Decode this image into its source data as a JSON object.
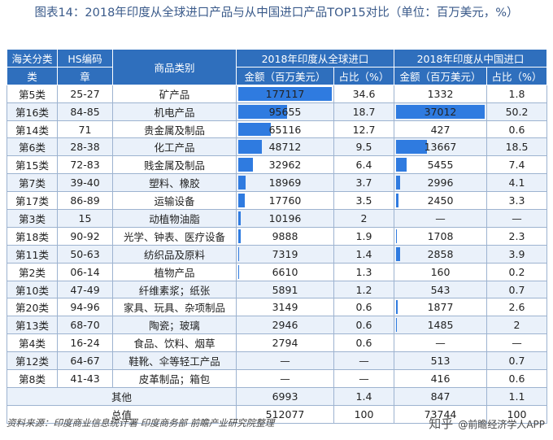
{
  "title": "图表14：2018年印度从全球进口产品与从中国进口产品TOP15对比（单位：百万美元，%）",
  "header": {
    "col1": "海关分类",
    "col1b": "类",
    "col2": "HS编码",
    "col2b": "章",
    "col3": "商品类别",
    "global": "2018年印度从全球进口",
    "china": "2018年印度从中国进口",
    "amount": "金额（百万美元）",
    "share": "占比（%）"
  },
  "rows": [
    {
      "cls": "第5类",
      "hs": "25-27",
      "name": "矿产品",
      "g_amt": "177117",
      "g_pct": "34.6",
      "c_amt": "1332",
      "c_pct": "1.8",
      "g_bar": 177117,
      "c_bar": 1332
    },
    {
      "cls": "第16类",
      "hs": "84-85",
      "name": "机电产品",
      "g_amt": "95655",
      "g_pct": "18.7",
      "c_amt": "37012",
      "c_pct": "50.2",
      "g_bar": 95655,
      "c_bar": 37012
    },
    {
      "cls": "第14类",
      "hs": "71",
      "name": "贵金属及制品",
      "g_amt": "65116",
      "g_pct": "12.7",
      "c_amt": "427",
      "c_pct": "0.6",
      "g_bar": 65116,
      "c_bar": 427
    },
    {
      "cls": "第6类",
      "hs": "28-38",
      "name": "化工产品",
      "g_amt": "48712",
      "g_pct": "9.5",
      "c_amt": "13667",
      "c_pct": "18.5",
      "g_bar": 48712,
      "c_bar": 13667
    },
    {
      "cls": "第15类",
      "hs": "72-83",
      "name": "贱金属及制品",
      "g_amt": "32962",
      "g_pct": "6.4",
      "c_amt": "5455",
      "c_pct": "7.4",
      "g_bar": 32962,
      "c_bar": 5455
    },
    {
      "cls": "第7类",
      "hs": "39-40",
      "name": "塑料、橡胶",
      "g_amt": "18969",
      "g_pct": "3.7",
      "c_amt": "2996",
      "c_pct": "4.1",
      "g_bar": 18969,
      "c_bar": 2996
    },
    {
      "cls": "第17类",
      "hs": "86-89",
      "name": "运输设备",
      "g_amt": "17760",
      "g_pct": "3.5",
      "c_amt": "2450",
      "c_pct": "3.3",
      "g_bar": 17760,
      "c_bar": 2450
    },
    {
      "cls": "第3类",
      "hs": "15",
      "name": "动植物油脂",
      "g_amt": "10196",
      "g_pct": "2",
      "c_amt": "—",
      "c_pct": "—",
      "g_bar": 10196,
      "c_bar": 0
    },
    {
      "cls": "第18类",
      "hs": "90-92",
      "name": "光学、钟表、医疗设备",
      "g_amt": "9888",
      "g_pct": "1.9",
      "c_amt": "1708",
      "c_pct": "2.3",
      "g_bar": 9888,
      "c_bar": 1708
    },
    {
      "cls": "第11类",
      "hs": "50-63",
      "name": "纺织品及原料",
      "g_amt": "7319",
      "g_pct": "1.4",
      "c_amt": "2858",
      "c_pct": "3.9",
      "g_bar": 7319,
      "c_bar": 2858
    },
    {
      "cls": "第2类",
      "hs": "06-14",
      "name": "植物产品",
      "g_amt": "6610",
      "g_pct": "1.3",
      "c_amt": "160",
      "c_pct": "0.2",
      "g_bar": 6610,
      "c_bar": 160
    },
    {
      "cls": "第10类",
      "hs": "47-49",
      "name": "纤维素浆；纸张",
      "g_amt": "5891",
      "g_pct": "1.2",
      "c_amt": "543",
      "c_pct": "0.7",
      "g_bar": 5891,
      "c_bar": 543
    },
    {
      "cls": "第20类",
      "hs": "94-96",
      "name": "家具、玩具、杂项制品",
      "g_amt": "3149",
      "g_pct": "0.6",
      "c_amt": "1877",
      "c_pct": "2.6",
      "g_bar": 3149,
      "c_bar": 1877
    },
    {
      "cls": "第13类",
      "hs": "68-70",
      "name": "陶瓷；玻璃",
      "g_amt": "2946",
      "g_pct": "0.6",
      "c_amt": "1485",
      "c_pct": "2",
      "g_bar": 2946,
      "c_bar": 1485
    },
    {
      "cls": "第4类",
      "hs": "16-24",
      "name": "食品、饮料、烟草",
      "g_amt": "2794",
      "g_pct": "0.6",
      "c_amt": "—",
      "c_pct": "—",
      "g_bar": 2794,
      "c_bar": 0
    },
    {
      "cls": "第12类",
      "hs": "64-67",
      "name": "鞋靴、伞等轻工产品",
      "g_amt": "—",
      "g_pct": "—",
      "c_amt": "513",
      "c_pct": "0.7",
      "g_bar": 0,
      "c_bar": 513
    },
    {
      "cls": "第8类",
      "hs": "41-43",
      "name": "皮革制品；箱包",
      "g_amt": "—",
      "g_pct": "—",
      "c_amt": "416",
      "c_pct": "0.6",
      "g_bar": 0,
      "c_bar": 416
    }
  ],
  "other": {
    "label": "其他",
    "g_amt": "6993",
    "g_pct": "1.4",
    "c_amt": "847",
    "c_pct": "1.1"
  },
  "total": {
    "label": "总值",
    "g_amt": "512077",
    "g_pct": "100",
    "c_amt": "73744",
    "c_pct": "100"
  },
  "source": "资料来源：印度商业信息统计署 印度商务部 前瞻产业研究院整理",
  "logo_zh": "知乎",
  "logo_text": "@前瞻经济学人APP",
  "bar_color": "#2f7be0"
}
